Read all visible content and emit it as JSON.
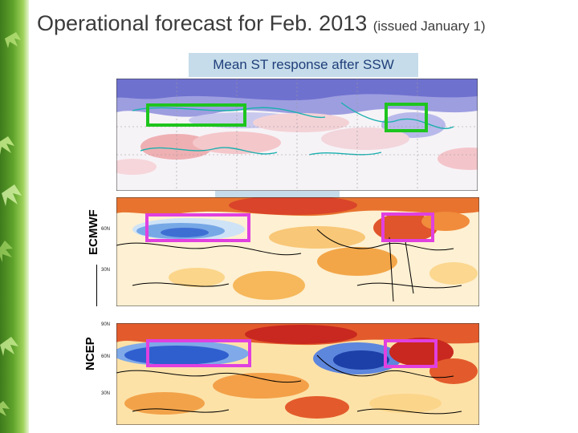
{
  "slide": {
    "title_main": "Operational forecast for Feb. 2013",
    "title_sub": "(issued January 1)"
  },
  "caption": "Mean ST response after SSW",
  "panels": [
    {
      "id": "composite",
      "label": ""
    },
    {
      "id": "ecmwf",
      "label": "ECMWF"
    },
    {
      "id": "ncep",
      "label": "NCEP"
    }
  ],
  "lat_labels": {
    "ecmwf": [
      "60N",
      "30N"
    ],
    "ncep": [
      "90N",
      "60N",
      "30N"
    ]
  },
  "colors": {
    "box_observed": "#1ec51e",
    "box_forecast": "#e040e0",
    "leaf_dark": "#3e7a1c",
    "caption_bg": "#c6dcea"
  }
}
